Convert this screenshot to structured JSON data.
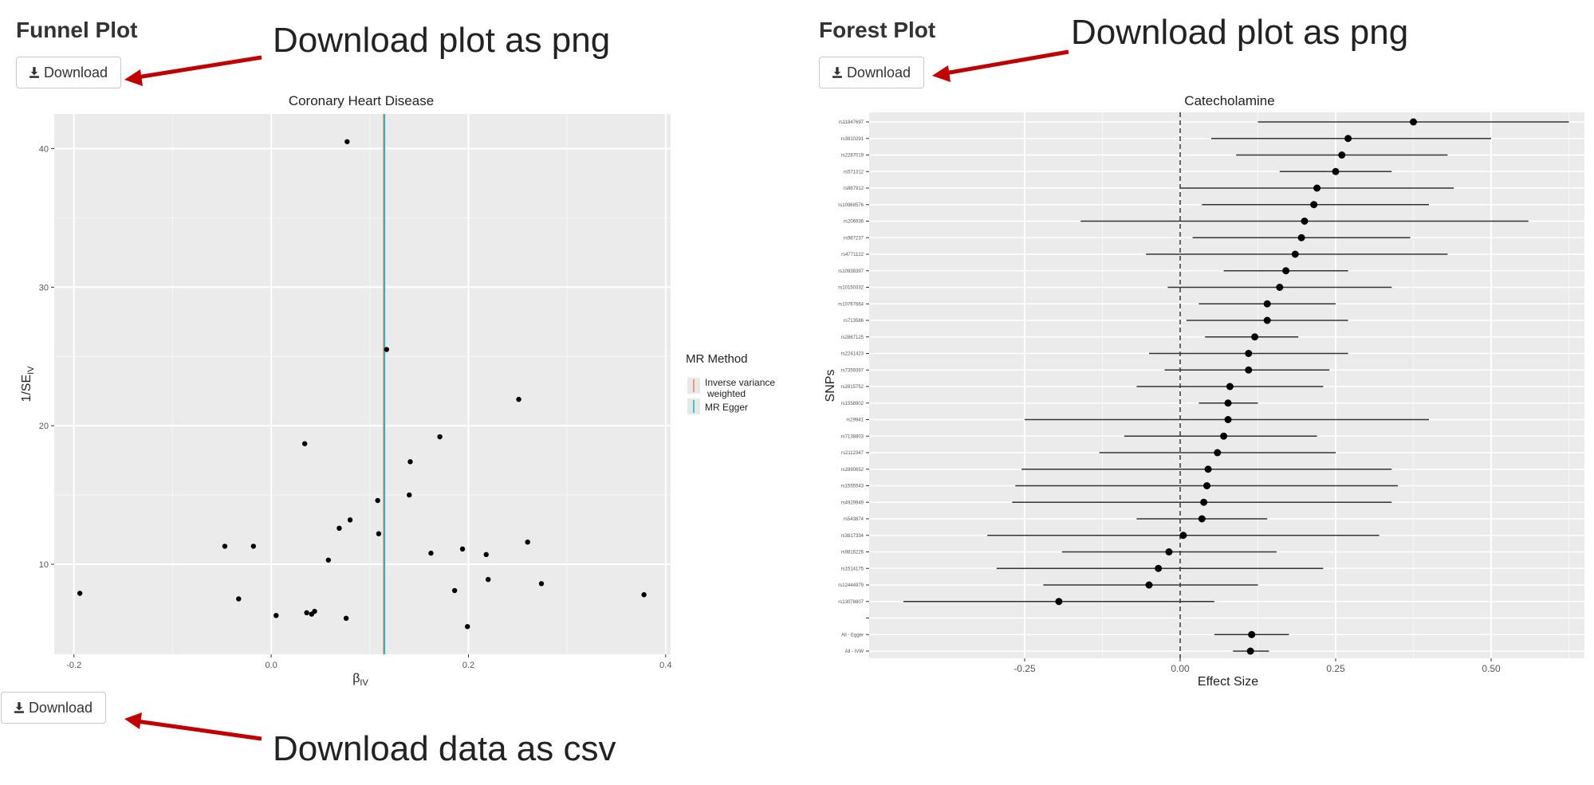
{
  "funnel": {
    "section_title": "Funnel Plot",
    "download_label": "Download",
    "note": "Download plot as png",
    "data_download_label": "Download",
    "data_note": "Download data as csv"
  },
  "forest": {
    "section_title": "Forest Plot",
    "download_label": "Download",
    "note": "Download plot as png"
  },
  "icons": {
    "download": "download-icon",
    "arrow": "red-arrow"
  },
  "colors": {
    "panel_bg": "#ebebeb",
    "arrow": "#c00000",
    "ivw": "#f8766d",
    "egger": "#00bfc4"
  },
  "chart_data": [
    {
      "type": "scatter",
      "title": "Coronary Heart Disease",
      "xlabel": "β",
      "xlabel_sub": "IV",
      "ylabel": "1/SE",
      "ylabel_sub": "IV",
      "xlim": [
        -0.22,
        0.405
      ],
      "ylim": [
        3.5,
        42.5
      ],
      "xticks": [
        -0.2,
        0.0,
        0.2,
        0.4
      ],
      "xtick_labels": [
        "-0.2",
        "0.0",
        "0.2",
        "0.4"
      ],
      "yticks": [
        10,
        20,
        30,
        40
      ],
      "ytick_labels": [
        "10",
        "20",
        "30",
        "40"
      ],
      "grid": true,
      "legend": {
        "title": "MR Method",
        "position": "right",
        "entries": [
          {
            "label": "Inverse variance",
            "label2": "weighted",
            "color": "#f8766d"
          },
          {
            "label": "MR Egger",
            "color": "#00bfc4"
          }
        ]
      },
      "vlines": [
        {
          "name": "Inverse variance weighted",
          "x": 0.114,
          "color": "#f8766d"
        },
        {
          "name": "MR Egger",
          "x": 0.115,
          "color": "#00bfc4"
        }
      ],
      "points": [
        {
          "x": 0.077,
          "y": 40.5
        },
        {
          "x": 0.117,
          "y": 25.5
        },
        {
          "x": 0.251,
          "y": 21.9
        },
        {
          "x": 0.171,
          "y": 19.2
        },
        {
          "x": 0.034,
          "y": 18.7
        },
        {
          "x": 0.141,
          "y": 17.4
        },
        {
          "x": 0.14,
          "y": 15.0
        },
        {
          "x": 0.108,
          "y": 14.6
        },
        {
          "x": 0.08,
          "y": 13.2
        },
        {
          "x": 0.069,
          "y": 12.6
        },
        {
          "x": 0.109,
          "y": 12.2
        },
        {
          "x": 0.26,
          "y": 11.6
        },
        {
          "x": -0.047,
          "y": 11.3
        },
        {
          "x": -0.018,
          "y": 11.3
        },
        {
          "x": 0.194,
          "y": 11.1
        },
        {
          "x": 0.162,
          "y": 10.8
        },
        {
          "x": 0.218,
          "y": 10.7
        },
        {
          "x": 0.058,
          "y": 10.3
        },
        {
          "x": 0.22,
          "y": 8.9
        },
        {
          "x": 0.274,
          "y": 8.6
        },
        {
          "x": 0.186,
          "y": 8.1
        },
        {
          "x": -0.194,
          "y": 7.9
        },
        {
          "x": 0.378,
          "y": 7.8
        },
        {
          "x": -0.033,
          "y": 7.5
        },
        {
          "x": 0.044,
          "y": 6.6
        },
        {
          "x": 0.036,
          "y": 6.5
        },
        {
          "x": 0.041,
          "y": 6.4
        },
        {
          "x": 0.005,
          "y": 6.3
        },
        {
          "x": 0.076,
          "y": 6.1
        },
        {
          "x": 0.199,
          "y": 5.5
        }
      ]
    },
    {
      "type": "forest",
      "title": "Catecholamine",
      "xlabel": "Effect Size",
      "ylabel": "SNPs",
      "xlim": [
        -0.5,
        0.65
      ],
      "xticks": [
        -0.25,
        0.0,
        0.25,
        0.5
      ],
      "xtick_labels": [
        "-0.25",
        "0.00",
        "0.25",
        "0.50"
      ],
      "reference_line": 0,
      "grid": true,
      "rows": [
        {
          "label": "rs11847697",
          "b": 0.375,
          "lo": 0.125,
          "hi": 0.625
        },
        {
          "label": "rs3810291",
          "b": 0.27,
          "lo": 0.05,
          "hi": 0.5
        },
        {
          "label": "rs2287019",
          "b": 0.26,
          "lo": 0.09,
          "hi": 0.43
        },
        {
          "label": "rs571312",
          "b": 0.25,
          "lo": 0.16,
          "hi": 0.34
        },
        {
          "label": "rs887912",
          "b": 0.22,
          "lo": 0.0,
          "hi": 0.44
        },
        {
          "label": "rs10968576",
          "b": 0.215,
          "lo": 0.035,
          "hi": 0.4
        },
        {
          "label": "rs206936",
          "b": 0.2,
          "lo": -0.16,
          "hi": 0.56
        },
        {
          "label": "rs987237",
          "b": 0.195,
          "lo": 0.02,
          "hi": 0.37
        },
        {
          "label": "rs4771122",
          "b": 0.185,
          "lo": -0.055,
          "hi": 0.43
        },
        {
          "label": "rs10938397",
          "b": 0.17,
          "lo": 0.07,
          "hi": 0.27
        },
        {
          "label": "rs10150332",
          "b": 0.16,
          "lo": -0.02,
          "hi": 0.34
        },
        {
          "label": "rs10767664",
          "b": 0.14,
          "lo": 0.03,
          "hi": 0.25
        },
        {
          "label": "rs713586",
          "b": 0.14,
          "lo": 0.01,
          "hi": 0.27
        },
        {
          "label": "rs2867125",
          "b": 0.12,
          "lo": 0.04,
          "hi": 0.19
        },
        {
          "label": "rs2241423",
          "b": 0.11,
          "lo": -0.05,
          "hi": 0.27
        },
        {
          "label": "rs7359397",
          "b": 0.11,
          "lo": -0.025,
          "hi": 0.24
        },
        {
          "label": "rs2815752",
          "b": 0.08,
          "lo": -0.07,
          "hi": 0.23
        },
        {
          "label": "rs1558902",
          "b": 0.077,
          "lo": 0.03,
          "hi": 0.125
        },
        {
          "label": "rs29941",
          "b": 0.077,
          "lo": -0.25,
          "hi": 0.4
        },
        {
          "label": "rs7138803",
          "b": 0.07,
          "lo": -0.09,
          "hi": 0.22
        },
        {
          "label": "rs2112347",
          "b": 0.06,
          "lo": -0.13,
          "hi": 0.25
        },
        {
          "label": "rs2890652",
          "b": 0.045,
          "lo": -0.255,
          "hi": 0.34
        },
        {
          "label": "rs1555543",
          "b": 0.043,
          "lo": -0.265,
          "hi": 0.35
        },
        {
          "label": "rs4929949",
          "b": 0.038,
          "lo": -0.27,
          "hi": 0.34
        },
        {
          "label": "rs543874",
          "b": 0.035,
          "lo": -0.07,
          "hi": 0.14
        },
        {
          "label": "rs3817334",
          "b": 0.005,
          "lo": -0.31,
          "hi": 0.32
        },
        {
          "label": "rs9816226",
          "b": -0.018,
          "lo": -0.19,
          "hi": 0.155
        },
        {
          "label": "rs1514175",
          "b": -0.035,
          "lo": -0.295,
          "hi": 0.23
        },
        {
          "label": "rs12444979",
          "b": -0.05,
          "lo": -0.22,
          "hi": 0.125
        },
        {
          "label": "rs13078807",
          "b": -0.195,
          "lo": -0.445,
          "hi": 0.055
        },
        {
          "label": "",
          "blank": true
        },
        {
          "label": "All - Egger",
          "b": 0.115,
          "lo": 0.055,
          "hi": 0.175
        },
        {
          "label": "All - IVW",
          "b": 0.113,
          "lo": 0.085,
          "hi": 0.143
        }
      ]
    }
  ]
}
